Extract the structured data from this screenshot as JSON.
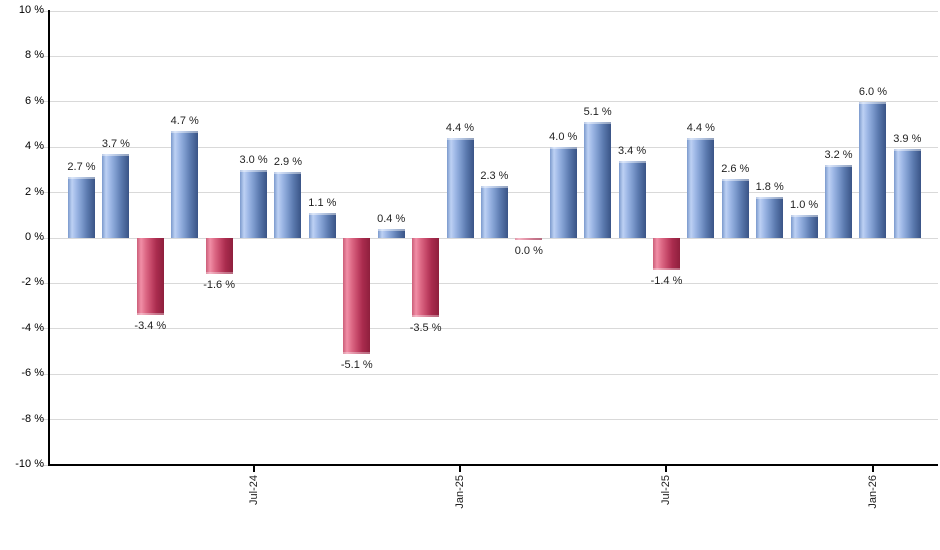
{
  "chart_data": {
    "type": "bar",
    "title": "",
    "xlabel": "",
    "ylabel": "",
    "ylim": [
      -10,
      10
    ],
    "grid": "horizontal",
    "legend": "none",
    "y_axis": {
      "tick_values": [
        10,
        8,
        6,
        4,
        2,
        0,
        -2,
        -4,
        -6,
        -8,
        -10
      ],
      "tick_labels": [
        "10 %",
        "8 %",
        "6 %",
        "4 %",
        "2 %",
        "0 %",
        "-2 %",
        "-4 %",
        "-6 %",
        "-8 %",
        "-10 %"
      ]
    },
    "x_ticks": [
      {
        "label": "Jul-24",
        "bar_index": 5
      },
      {
        "label": "Jan-25",
        "bar_index": 11
      },
      {
        "label": "Jul-25",
        "bar_index": 17
      },
      {
        "label": "Jan-26",
        "bar_index": 23
      }
    ],
    "bars": [
      {
        "value": 2.7,
        "label": "2.7 %",
        "color": "blue"
      },
      {
        "value": 3.7,
        "label": "3.7 %",
        "color": "blue"
      },
      {
        "value": -3.4,
        "label": "-3.4 %",
        "color": "red"
      },
      {
        "value": 4.7,
        "label": "4.7 %",
        "color": "blue"
      },
      {
        "value": -1.6,
        "label": "-1.6 %",
        "color": "red"
      },
      {
        "value": 3.0,
        "label": "3.0 %",
        "color": "blue"
      },
      {
        "value": 2.9,
        "label": "2.9 %",
        "color": "blue"
      },
      {
        "value": 1.1,
        "label": "1.1 %",
        "color": "blue"
      },
      {
        "value": -5.1,
        "label": "-5.1 %",
        "color": "red"
      },
      {
        "value": 0.4,
        "label": "0.4 %",
        "color": "blue"
      },
      {
        "value": -3.5,
        "label": "-3.5 %",
        "color": "red"
      },
      {
        "value": 4.4,
        "label": "4.4 %",
        "color": "blue"
      },
      {
        "value": 2.3,
        "label": "2.3 %",
        "color": "blue"
      },
      {
        "value": 0.0,
        "label": "0.0 %",
        "color": "red"
      },
      {
        "value": 4.0,
        "label": "4.0 %",
        "color": "blue"
      },
      {
        "value": 5.1,
        "label": "5.1 %",
        "color": "blue"
      },
      {
        "value": 3.4,
        "label": "3.4 %",
        "color": "blue"
      },
      {
        "value": -1.4,
        "label": "-1.4 %",
        "color": "red"
      },
      {
        "value": 4.4,
        "label": "4.4 %",
        "color": "blue"
      },
      {
        "value": 2.6,
        "label": "2.6 %",
        "color": "blue"
      },
      {
        "value": 1.8,
        "label": "1.8 %",
        "color": "blue"
      },
      {
        "value": 1.0,
        "label": "1.0 %",
        "color": "blue"
      },
      {
        "value": 3.2,
        "label": "3.2 %",
        "color": "blue"
      },
      {
        "value": 6.0,
        "label": "6.0 %",
        "color": "blue"
      },
      {
        "value": 3.9,
        "label": "3.9 %",
        "color": "blue"
      }
    ]
  },
  "colors": {
    "positive_bar_gradient": [
      "#7b99cc",
      "#bdd1f4",
      "#9cb6e5",
      "#7b99cc",
      "#5a79ae",
      "#3a5486"
    ],
    "negative_bar_gradient": [
      "#cb5e79",
      "#f18ea6",
      "#dd6a86",
      "#c64869",
      "#aa2c4e",
      "#8e1f3d"
    ],
    "grid_line": "#d9d9d9",
    "axis_line": "#000000",
    "label_text": "#1f1f1f",
    "background": "#ffffff"
  }
}
